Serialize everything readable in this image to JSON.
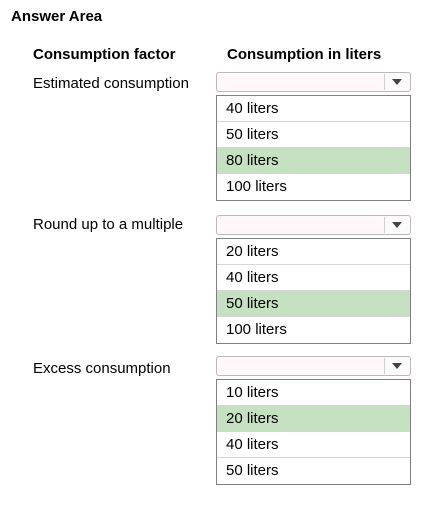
{
  "answer_area": {
    "title": "Answer Area"
  },
  "headers": {
    "factor": "Consumption factor",
    "liters": "Consumption in liters"
  },
  "rows": [
    {
      "label": "Estimated consumption",
      "options": [
        "40 liters",
        "50 liters",
        "80 liters",
        "100 liters"
      ],
      "selected_index": 2
    },
    {
      "label": "Round up to a multiple",
      "options": [
        "20 liters",
        "40 liters",
        "50 liters",
        "100 liters"
      ],
      "selected_index": 2
    },
    {
      "label": "Excess consumption",
      "options": [
        "10 liters",
        "20 liters",
        "40 liters",
        "50 liters"
      ],
      "selected_index": 1
    }
  ],
  "colors": {
    "selected_option": "#c6e0c2",
    "select_background": "#fff7f9"
  },
  "icons": {
    "dropdown_arrow": "chevron-down-icon"
  }
}
